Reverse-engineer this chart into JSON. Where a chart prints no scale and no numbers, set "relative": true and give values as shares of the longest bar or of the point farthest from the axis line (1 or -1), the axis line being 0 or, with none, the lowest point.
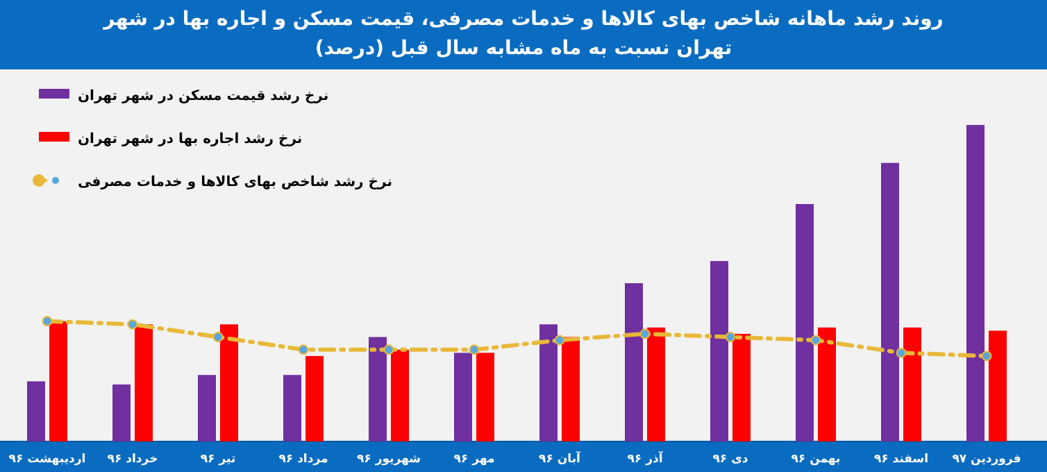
{
  "chart_data": {
    "type": "bar",
    "title": "روند رشد ماهانه شاخص بهای کالاها و خدمات مصرفی، قیمت مسکن و اجاره بها در شهر تهران نسبت به ماه مشابه سال قبل (درصد)",
    "relative": true,
    "legend": "top left",
    "marker": "circle",
    "line_style": "dashed",
    "categories": [
      "اردیبهشت ۹۶",
      "خرداد ۹۶",
      "تیر ۹۶",
      "مرداد ۹۶",
      "شهریور ۹۶",
      "مهر ۹۶",
      "آبان ۹۶",
      "آذر ۹۶",
      "دی ۹۶",
      "بهمن ۹۶",
      "اسفند ۹۶",
      "فروردین ۹۷"
    ],
    "series": [
      {
        "name": "نرخ رشد قیمت مسکن در شهر تهران",
        "color": "#7030a0",
        "values": [
          0.19,
          0.18,
          0.21,
          0.21,
          0.33,
          0.28,
          0.37,
          0.5,
          0.57,
          0.75,
          0.88,
          1
        ]
      },
      {
        "name": "نرخ رشد اجاره بها در شهر تهران",
        "color": "#ff0000",
        "values": [
          0.38,
          0.37,
          0.37,
          0.27,
          0.29,
          0.28,
          0.33,
          0.36,
          0.34,
          0.36,
          0.36,
          0.35
        ]
      },
      {
        "name": "نرخ رشد شاخص بهای کالاها و خدمات مصرفی",
        "color": "#e8b838",
        "type": "line",
        "values": [
          0.38,
          0.37,
          0.33,
          0.29,
          0.29,
          0.29,
          0.32,
          0.34,
          0.33,
          0.32,
          0.28,
          0.27
        ]
      }
    ]
  }
}
